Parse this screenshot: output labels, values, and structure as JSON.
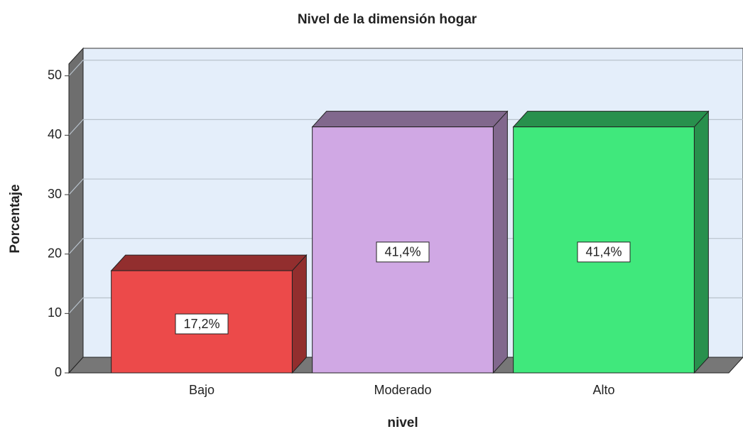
{
  "chart_data": {
    "type": "bar3d",
    "title": "Nivel de la dimensión hogar",
    "x_label": "nivel",
    "y_label": "Porcentaje",
    "categories": [
      "Bajo",
      "Moderado",
      "Alto"
    ],
    "values": [
      17.2,
      41.4,
      41.4
    ],
    "value_labels": [
      "17,2%",
      "41,4%",
      "41,4%"
    ],
    "colors": [
      "#ec4a4a",
      "#d0a8e4",
      "#40e87c"
    ],
    "ylim": [
      0,
      52
    ],
    "yticks": [
      0,
      10,
      20,
      30,
      40,
      50
    ],
    "grid": true
  }
}
